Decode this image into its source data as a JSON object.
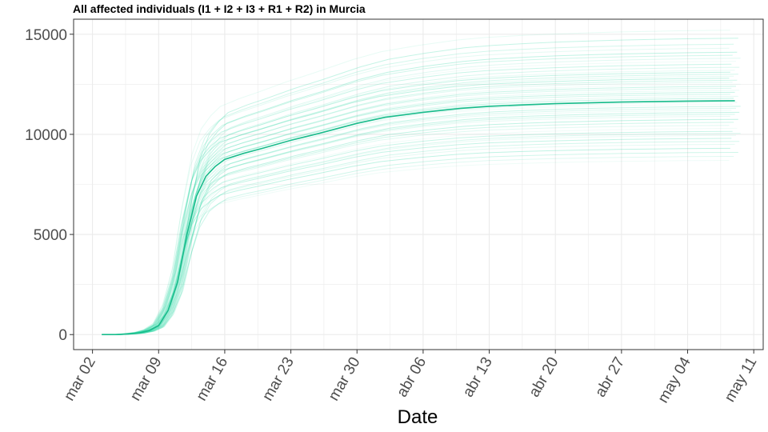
{
  "chart_data": {
    "type": "line",
    "title": "All affected individuals (I1 + I2 + I3 + R1 + R2) in  Murcia",
    "xlabel": "Date",
    "ylabel": "",
    "x_axis_kind": "date",
    "xlim": [
      "2020-02-29",
      "2020-05-12"
    ],
    "ylim": [
      -750,
      15750
    ],
    "x_ticks": [
      {
        "date": "2020-03-02",
        "label": "mar 02"
      },
      {
        "date": "2020-03-09",
        "label": "mar 09"
      },
      {
        "date": "2020-03-16",
        "label": "mar 16"
      },
      {
        "date": "2020-03-23",
        "label": "mar 23"
      },
      {
        "date": "2020-03-30",
        "label": "mar 30"
      },
      {
        "date": "2020-04-06",
        "label": "abr 06"
      },
      {
        "date": "2020-04-13",
        "label": "abr 13"
      },
      {
        "date": "2020-04-20",
        "label": "abr 20"
      },
      {
        "date": "2020-04-27",
        "label": "abr 27"
      },
      {
        "date": "2020-05-04",
        "label": "may 04"
      },
      {
        "date": "2020-05-11",
        "label": "may 11"
      }
    ],
    "y_ticks": [
      0,
      5000,
      10000,
      15000
    ],
    "y_tick_labels": [
      "0",
      "5000",
      "10000",
      "15000"
    ],
    "grid": true,
    "colors": {
      "main": "#1abc8c",
      "ensemble": "#2ed8a6",
      "grid": "#ebebeb",
      "axis": "#333333"
    },
    "main_series": {
      "x": [
        "2020-03-03",
        "2020-03-04",
        "2020-03-05",
        "2020-03-06",
        "2020-03-07",
        "2020-03-08",
        "2020-03-09",
        "2020-03-10",
        "2020-03-11",
        "2020-03-12",
        "2020-03-13",
        "2020-03-14",
        "2020-03-15",
        "2020-03-16",
        "2020-03-18",
        "2020-03-20",
        "2020-03-23",
        "2020-03-26",
        "2020-03-30",
        "2020-04-02",
        "2020-04-06",
        "2020-04-10",
        "2020-04-13",
        "2020-04-17",
        "2020-04-20",
        "2020-04-24",
        "2020-04-27",
        "2020-05-01",
        "2020-05-04",
        "2020-05-09"
      ],
      "y": [
        0,
        0,
        10,
        40,
        90,
        200,
        450,
        1200,
        2600,
        5000,
        6900,
        7900,
        8400,
        8750,
        9050,
        9300,
        9700,
        10050,
        10550,
        10850,
        11100,
        11300,
        11400,
        11480,
        11530,
        11580,
        11610,
        11640,
        11660,
        11680
      ]
    },
    "ensemble_finals": [
      8700,
      8900,
      9100,
      9300,
      9500,
      9650,
      9800,
      9950,
      10050,
      10150,
      10300,
      10450,
      10600,
      10750,
      10900,
      11000,
      11100,
      11200,
      11300,
      11400,
      11500,
      11600,
      11700,
      11800,
      11900,
      12000,
      12100,
      12200,
      12300,
      12400,
      12500,
      12600,
      12700,
      12800,
      12900,
      13000,
      13100,
      13200,
      13350,
      13500,
      13650,
      13800,
      13950,
      14100,
      14300,
      14500,
      14800,
      15200
    ]
  }
}
